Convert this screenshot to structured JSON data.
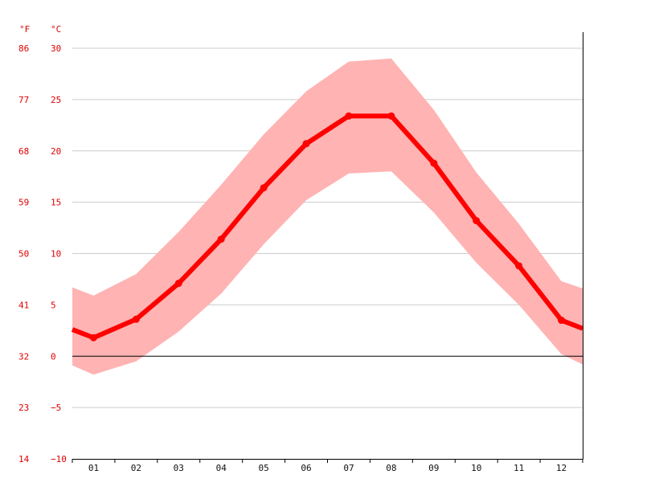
{
  "chart_data": {
    "type": "line",
    "title": "",
    "xlabel": "",
    "ylabel": "",
    "categories": [
      "01",
      "02",
      "03",
      "04",
      "05",
      "06",
      "07",
      "08",
      "09",
      "10",
      "11",
      "12"
    ],
    "series": [
      {
        "name": "",
        "color": "#ff0000",
        "values": [
          1.8,
          3.6,
          7.1,
          11.4,
          16.4,
          20.7,
          23.4,
          23.4,
          18.8,
          13.2,
          8.8,
          3.5
        ]
      }
    ],
    "band": {
      "color": "#ffb3b3",
      "low": [
        -1.8,
        -0.5,
        2.4,
        6.1,
        10.9,
        15.2,
        17.8,
        18.0,
        14.0,
        9.1,
        5.0,
        0.2
      ],
      "high": [
        5.9,
        8.0,
        12.1,
        16.7,
        21.6,
        25.8,
        28.7,
        29.0,
        24.0,
        17.9,
        12.9,
        7.3
      ]
    },
    "edge_values": {
      "left_line": 2.6,
      "right_line": 2.7,
      "left_low": -0.9,
      "left_high": 6.7,
      "right_low": -0.8,
      "right_high": 6.6
    },
    "ylim": [
      -10,
      30
    ],
    "y_ticks_c": [
      "30",
      "25",
      "20",
      "15",
      "10",
      "5",
      "0",
      "−5",
      "−10"
    ],
    "y_ticks_f": [
      "86",
      "77",
      "68",
      "59",
      "50",
      "41",
      "32",
      "23",
      "14"
    ],
    "unit_f": "°F",
    "unit_c": "°C",
    "grid": true,
    "zero_line": true,
    "legend": "none"
  }
}
